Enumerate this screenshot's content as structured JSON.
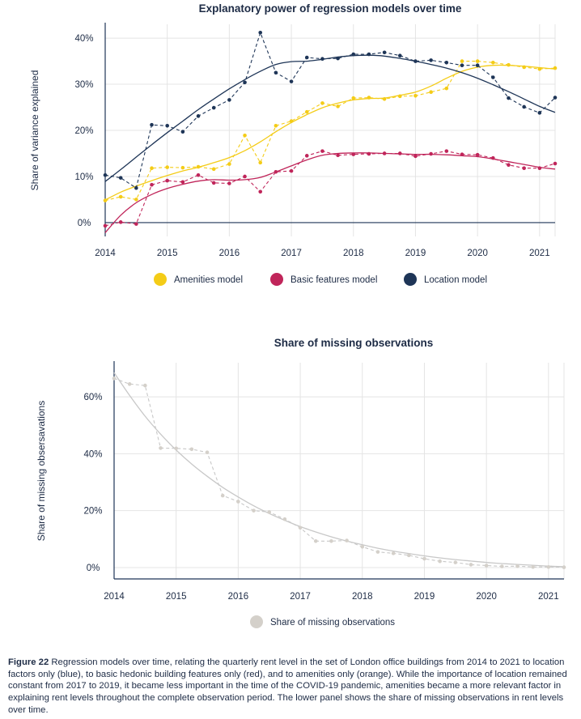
{
  "colors": {
    "amenities": "#f4cc17",
    "basic": "#c0255a",
    "location": "#1e3557",
    "missing_line": "#c8c8c8",
    "missing_marker": "#d4d0ca",
    "grid": "#e4e4e4",
    "axis": "#1e3557"
  },
  "chart_data": [
    {
      "type": "line",
      "title": "Explanatory power of regression models over time",
      "xlabel": "",
      "ylabel": "Share of variance explained",
      "x_ticks": [
        "2014",
        "2015",
        "2016",
        "2017",
        "2018",
        "2019",
        "2020",
        "2021"
      ],
      "y_ticks": [
        "0%",
        "10%",
        "20%",
        "30%",
        "40%"
      ],
      "xlim": [
        2014,
        2021.25
      ],
      "ylim": [
        -3,
        43
      ],
      "grid": true,
      "legend": "bottom",
      "legend_labels": [
        "Amenities model",
        "Basic features model",
        "Location model"
      ],
      "x": [
        2014,
        2014.25,
        2014.5,
        2014.75,
        2015,
        2015.25,
        2015.5,
        2015.75,
        2016,
        2016.25,
        2016.5,
        2016.75,
        2017,
        2017.25,
        2017.5,
        2017.75,
        2018,
        2018.25,
        2018.5,
        2018.75,
        2019,
        2019.25,
        2019.5,
        2019.75,
        2020,
        2020.25,
        2020.5,
        2020.75,
        2021,
        2021.25
      ],
      "series": [
        {
          "name": "Amenities model",
          "color_key": "amenities",
          "values": [
            4.8,
            5.6,
            5.0,
            11.8,
            12.0,
            11.9,
            12.1,
            11.6,
            12.7,
            18.9,
            13.0,
            21.0,
            22.0,
            24.0,
            25.9,
            25.2,
            27.0,
            27.1,
            26.8,
            27.4,
            27.5,
            28.3,
            29.1,
            35.0,
            35.0,
            34.7,
            34.2,
            33.7,
            33.3,
            33.5
          ],
          "trend": [
            4.9,
            6.6,
            7.9,
            9.1,
            10.2,
            11.2,
            12.0,
            13.0,
            14.1,
            15.6,
            17.5,
            19.7,
            21.7,
            23.4,
            24.9,
            25.9,
            26.6,
            26.9,
            27.0,
            27.6,
            28.3,
            29.6,
            31.3,
            32.8,
            33.7,
            34.1,
            34.1,
            33.9,
            33.6,
            33.3
          ]
        },
        {
          "name": "Basic features model",
          "color_key": "basic",
          "values": [
            -0.7,
            0.1,
            -0.3,
            8.2,
            9.1,
            8.8,
            10.3,
            8.6,
            8.5,
            10.0,
            6.7,
            11.0,
            11.2,
            14.5,
            15.5,
            14.6,
            14.8,
            14.9,
            15.0,
            15.0,
            14.4,
            14.9,
            15.5,
            14.8,
            14.7,
            14.0,
            12.5,
            11.8,
            11.8,
            12.8
          ],
          "trend": [
            -2.2,
            1.6,
            4.3,
            6.1,
            7.4,
            8.3,
            9.0,
            9.3,
            9.2,
            9.3,
            9.8,
            11.0,
            12.3,
            13.6,
            14.6,
            15.0,
            15.1,
            15.1,
            15.0,
            14.9,
            14.8,
            14.8,
            14.7,
            14.5,
            14.3,
            13.8,
            13.2,
            12.6,
            12.0,
            11.6
          ]
        },
        {
          "name": "Location model",
          "color_key": "location",
          "values": [
            10.3,
            9.7,
            7.5,
            21.2,
            21.0,
            19.7,
            23.1,
            24.9,
            26.6,
            30.4,
            41.2,
            32.5,
            30.6,
            35.8,
            35.5,
            35.6,
            36.5,
            36.5,
            36.9,
            36.2,
            35.0,
            35.2,
            34.7,
            34.1,
            34.1,
            31.5,
            27.0,
            25.1,
            23.8,
            27.1
          ],
          "trend": [
            8.9,
            11.5,
            14.2,
            16.9,
            19.5,
            22.0,
            24.5,
            26.8,
            29.0,
            31.0,
            32.8,
            34.3,
            34.9,
            35.0,
            35.4,
            35.9,
            36.2,
            36.3,
            36.1,
            35.6,
            35.0,
            34.3,
            33.5,
            32.5,
            31.3,
            29.9,
            28.4,
            26.8,
            25.2,
            23.9
          ]
        }
      ]
    },
    {
      "type": "line",
      "title": "Share of missing observations",
      "xlabel": "",
      "ylabel": "Share of missing obsersavations",
      "x_ticks": [
        "2014",
        "2015",
        "2016",
        "2017",
        "2018",
        "2019",
        "2020",
        "2021"
      ],
      "y_ticks": [
        "0%",
        "20%",
        "40%",
        "60%"
      ],
      "xlim": [
        2014,
        2021.25
      ],
      "ylim": [
        -4,
        72
      ],
      "grid": true,
      "legend": "bottom",
      "legend_labels": [
        "Share of missing observations"
      ],
      "x": [
        2014,
        2014.25,
        2014.5,
        2014.75,
        2015,
        2015.25,
        2015.5,
        2015.75,
        2016,
        2016.25,
        2016.5,
        2016.75,
        2017,
        2017.25,
        2017.5,
        2017.75,
        2018,
        2018.25,
        2018.5,
        2018.75,
        2019,
        2019.25,
        2019.5,
        2019.75,
        2020,
        2020.25,
        2020.5,
        2020.75,
        2021,
        2021.25
      ],
      "series": [
        {
          "name": "Share of missing observations",
          "color_key": "missing_marker",
          "values": [
            66.5,
            64.5,
            64.0,
            42.0,
            41.9,
            41.6,
            40.5,
            25.3,
            23.2,
            20.0,
            19.5,
            17.0,
            14.0,
            9.3,
            9.3,
            9.5,
            7.3,
            5.5,
            5.0,
            4.3,
            3.1,
            2.2,
            1.8,
            1.0,
            0.7,
            0.4,
            0.5,
            0.2,
            0.2,
            0.1
          ],
          "trend": [
            68.5,
            60.5,
            53.2,
            46.9,
            41.3,
            36.4,
            32.1,
            28.2,
            24.8,
            21.7,
            19.0,
            16.6,
            14.4,
            12.5,
            10.8,
            9.3,
            8.0,
            6.8,
            5.8,
            4.9,
            4.1,
            3.4,
            2.8,
            2.3,
            1.8,
            1.4,
            1.1,
            0.8,
            0.5,
            0.3
          ]
        }
      ]
    }
  ],
  "caption": {
    "label": "Figure 22",
    "text": " Regression models over time, relating the quarterly rent level in the set of London office buildings from 2014 to 2021 to location factors only (blue), to basic hedonic building features only (red), and to amenities only (orange). While the importance of location remained constant from 2017 to 2019, it became less important in the time of the COVID-19 pandemic, amenities became a more relevant factor in explaining rent levels throughout the complete observation period. The lower panel shows the share of missing observations in rent levels over time."
  }
}
